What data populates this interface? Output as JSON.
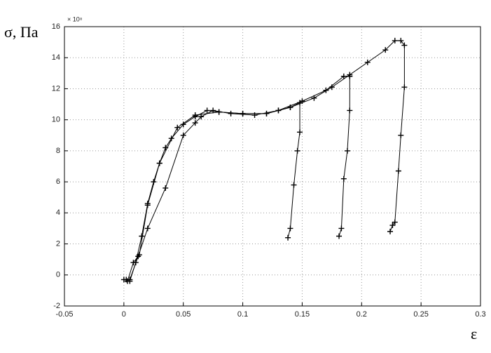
{
  "chart_data": {
    "type": "line",
    "y_label": "σ, Па",
    "x_label": "ε",
    "y_exponent": "× 10⁸",
    "xlim": [
      -0.05,
      0.3
    ],
    "xticks": [
      -0.05,
      0,
      0.05,
      0.1,
      0.15,
      0.2,
      0.25,
      0.3
    ],
    "ylim": [
      -2,
      16
    ],
    "yticks": [
      -2,
      0,
      2,
      4,
      6,
      8,
      10,
      12,
      14,
      16
    ],
    "grid": true,
    "marker": "+",
    "series": [
      {
        "color": "#000000",
        "x": [
          0.002,
          0.005,
          0.01,
          0.015,
          0.02,
          0.025,
          0.03,
          0.035,
          0.04,
          0.05,
          0.06,
          0.07,
          0.08,
          0.1,
          0.12,
          0.13,
          0.14,
          0.148,
          0.148,
          0.146,
          0.143,
          0.14,
          0.138
        ],
        "values": [
          -0.3,
          -0.4,
          0.8,
          2.5,
          4.6,
          6,
          7.2,
          8.2,
          8.8,
          9.7,
          10.2,
          10.6,
          10.5,
          10.4,
          10.4,
          10.6,
          10.8,
          11.1,
          9.2,
          8,
          5.8,
          3,
          2.4
        ]
      },
      {
        "color": "#000000",
        "x": [
          0,
          0.005,
          0.012,
          0.02,
          0.035,
          0.05,
          0.06,
          0.065,
          0.075,
          0.09,
          0.11,
          0.13,
          0.15,
          0.17,
          0.185,
          0.19,
          0.19,
          0.188,
          0.185,
          0.183,
          0.181
        ],
        "values": [
          -0.3,
          -0.3,
          1.2,
          3,
          5.6,
          9,
          9.8,
          10.2,
          10.6,
          10.4,
          10.3,
          10.6,
          11.2,
          11.9,
          12.8,
          12.8,
          10.6,
          8,
          6.2,
          3,
          2.5
        ]
      },
      {
        "color": "#000000",
        "x": [
          0.003,
          0.008,
          0.013,
          0.02,
          0.03,
          0.045,
          0.06,
          0.08,
          0.1,
          0.12,
          0.14,
          0.16,
          0.175,
          0.19,
          0.205,
          0.22,
          0.228,
          0.233,
          0.236,
          0.236,
          0.233,
          0.231,
          0.228,
          0.226,
          0.224
        ],
        "values": [
          -0.4,
          0.8,
          1.3,
          4.5,
          7.2,
          9.5,
          10.3,
          10.5,
          10.4,
          10.4,
          10.8,
          11.4,
          12.1,
          12.9,
          13.7,
          14.5,
          15.1,
          15.1,
          14.8,
          12.1,
          9,
          6.7,
          3.4,
          3.2,
          2.8
        ]
      }
    ]
  }
}
